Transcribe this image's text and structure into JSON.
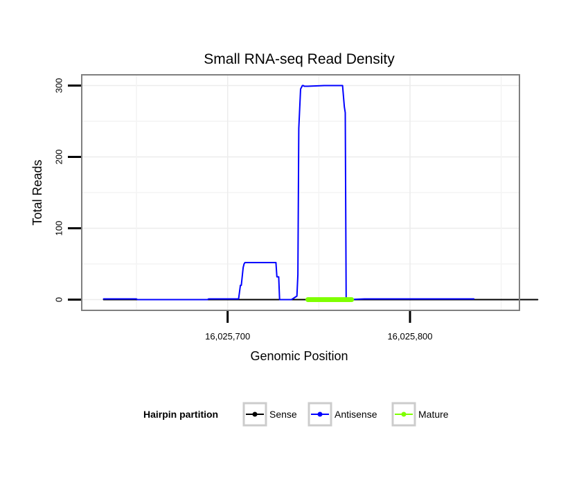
{
  "chart_data": {
    "type": "line",
    "title": "Small RNA-seq Read Density",
    "xlabel": "Genomic Position",
    "ylabel": "Total Reads",
    "xlim": [
      16025620,
      16025860
    ],
    "ylim": [
      -15,
      315
    ],
    "x_ticks": [
      16025700,
      16025800
    ],
    "x_tick_labels": [
      "16,025,700",
      "16,025,800"
    ],
    "y_ticks": [
      0,
      100,
      200,
      300
    ],
    "y_tick_labels": [
      "0",
      "100",
      "200",
      "300"
    ],
    "grid": true,
    "legend": {
      "title": "Hairpin partition",
      "position": "bottom",
      "entries": [
        "Sense",
        "Antisense",
        "Mature"
      ]
    },
    "series": [
      {
        "name": "Sense",
        "color": "#000000",
        "x": [
          16025632,
          16025870
        ],
        "y": [
          0,
          0
        ]
      },
      {
        "name": "Antisense",
        "color": "#0000ff",
        "x": [
          16025632,
          16025650,
          16025650.5,
          16025689,
          16025689.5,
          16025706,
          16025707,
          16025707.5,
          16025708.5,
          16025709,
          16025709.5,
          16025711,
          16025726.5,
          16025727,
          16025728,
          16025728.5,
          16025729,
          16025735,
          16025738,
          16025738.5,
          16025739,
          16025740,
          16025741,
          16025741.5,
          16025742,
          16025744,
          16025753,
          16025763,
          16025764,
          16025764.5,
          16025765,
          16025765.5,
          16025775,
          16025790,
          16025835
        ],
        "y": [
          1,
          1,
          0,
          0,
          1,
          1,
          20,
          20,
          45,
          50,
          52,
          52,
          52,
          32,
          32,
          0,
          0,
          0,
          5,
          35,
          240,
          295,
          300,
          300,
          299,
          299,
          300,
          300,
          270,
          262,
          2,
          0,
          1,
          1,
          1
        ]
      },
      {
        "name": "Mature",
        "color": "#7fff00",
        "x": [
          16025744,
          16025768
        ],
        "y": [
          0,
          0
        ]
      }
    ]
  }
}
